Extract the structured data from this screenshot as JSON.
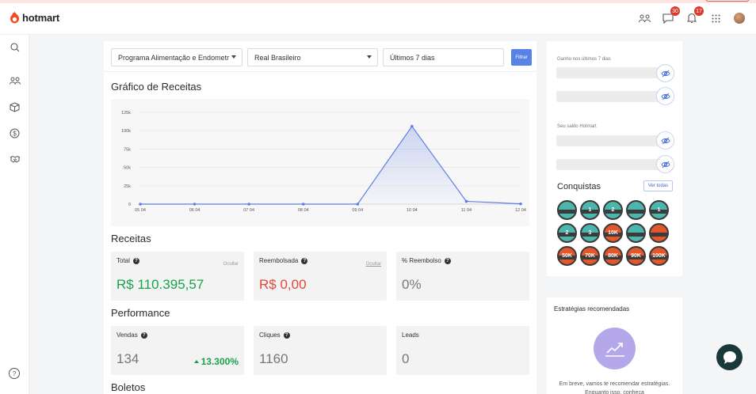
{
  "header": {
    "brand": "hotmart",
    "messages_count": "30",
    "notifications_count": "17",
    "icons": [
      "community-icon",
      "messages-icon",
      "notifications-icon",
      "apps-grid-icon",
      "avatar"
    ]
  },
  "sidebar": {
    "items": [
      "search-icon",
      "users-icon",
      "products-icon",
      "money-icon",
      "handshake-icon"
    ],
    "help": "?"
  },
  "filters": {
    "product": "Programa Alimentação e Endometri",
    "currency": "Real Brasileiro",
    "period": "Últimos 7 dias",
    "button": "Filtrar"
  },
  "revenue_chart": {
    "title": "Gráfico de Receitas"
  },
  "chart_data": {
    "type": "area",
    "x": [
      "05 04",
      "06 04",
      "07 04",
      "08 04",
      "09 04",
      "10 04",
      "11 04",
      "12 04"
    ],
    "values": [
      0,
      0,
      0,
      0,
      0,
      106000,
      3800,
      400
    ],
    "ylim": [
      0,
      125000
    ],
    "yticks": [
      "0",
      "25k",
      "50k",
      "75k",
      "100k",
      "125k"
    ],
    "grid": true,
    "color": "#5f7fe3"
  },
  "receitas": {
    "title": "Receitas",
    "total_label": "Total",
    "total_value": "R$ 110.395,57",
    "hide": "Ocultar",
    "refunded_label": "Reembolsada",
    "refunded_value": "R$ 0,00",
    "refund_pct_label": "% Reembolso",
    "refund_pct_value": "0%"
  },
  "performance": {
    "title": "Performance",
    "sales_label": "Vendas",
    "sales_value": "134",
    "sales_growth": "13.300%",
    "clicks_label": "Cliques",
    "clicks_value": "1160",
    "leads_label": "Leads",
    "leads_value": "0"
  },
  "boletos": {
    "title": "Boletos"
  },
  "right_panel": {
    "earnings_label": "Ganho nos últimos 7 dias",
    "balance_label": "Seu saldo Hotmart",
    "conquests_title": "Conquistas",
    "see_all": "Ver todas",
    "badges": [
      "",
      "1",
      "2",
      "",
      "1",
      "2",
      "3",
      "10K",
      "",
      "",
      "50K",
      "70K",
      "80K",
      "90K",
      "100K"
    ],
    "badge_colors": [
      "#4db6ac",
      "#4db6ac",
      "#4db6ac",
      "#4db6ac",
      "#4db6ac",
      "#4db6ac",
      "#4db6ac",
      "#e2572c",
      "#4db6ac",
      "#e2572c",
      "#e2572c",
      "#e2572c",
      "#e2572c",
      "#e2572c",
      "#e2572c"
    ]
  },
  "strategies": {
    "title": "Estratégias recomendadas",
    "text": "Em breve, vamos te recomendar estratégias. Enquanto isso, conheça"
  }
}
